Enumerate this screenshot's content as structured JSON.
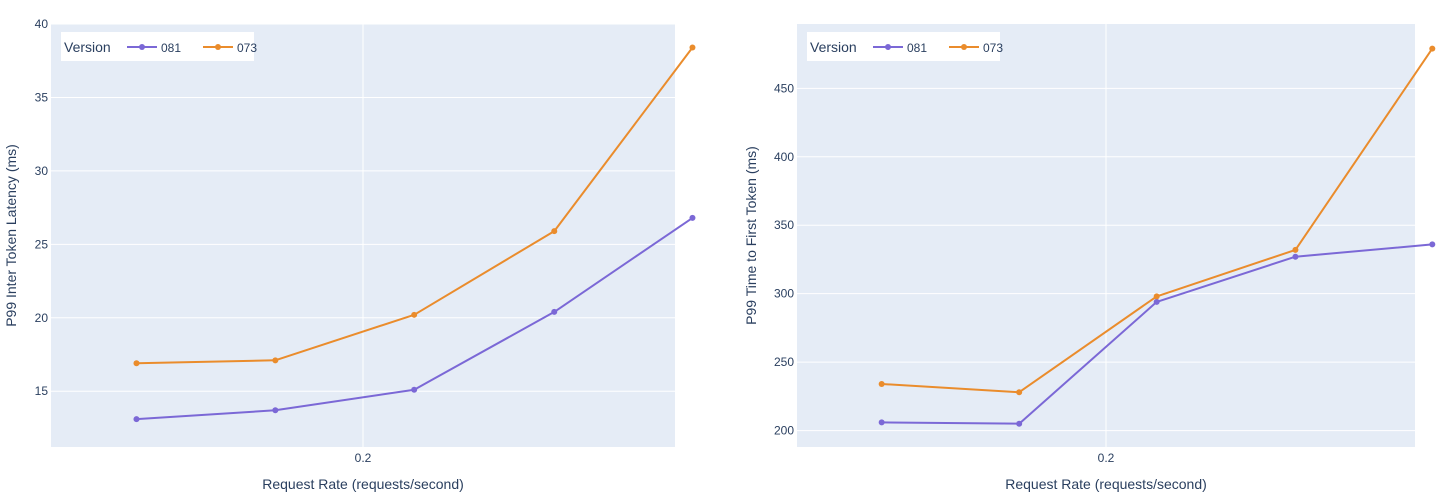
{
  "chart_data": [
    {
      "type": "line",
      "title": "",
      "xlabel": "Request Rate (requests/second)",
      "ylabel": "P99 Inter Token Latency (ms)",
      "x_ticks": [
        0.2
      ],
      "x_tick_labels": [
        "0.2"
      ],
      "y_ticks": [
        15,
        20,
        25,
        30,
        35,
        40
      ],
      "y_tick_labels": [
        "15",
        "20",
        "25",
        "30",
        "35",
        "40"
      ],
      "ylim": [
        11.2,
        40
      ],
      "xlim": [
        0.1,
        0.3
      ],
      "grid": true,
      "legend": {
        "title": "Version",
        "placement": "top-left",
        "orientation": "horizontal"
      },
      "x": [
        0.1274,
        0.1719,
        0.2164,
        0.2613,
        0.3056
      ],
      "series": [
        {
          "name": "081",
          "color": "#7b68d6",
          "values": [
            13.1,
            13.7,
            15.1,
            20.4,
            26.8
          ]
        },
        {
          "name": "073",
          "color": "#ea8c2c",
          "values": [
            16.9,
            17.1,
            20.2,
            25.9,
            38.4
          ]
        }
      ]
    },
    {
      "type": "line",
      "title": "",
      "xlabel": "Request Rate (requests/second)",
      "ylabel": "P99 Time to First Token (ms)",
      "x_ticks": [
        0.2
      ],
      "x_tick_labels": [
        "0.2"
      ],
      "y_ticks": [
        200,
        250,
        300,
        350,
        400,
        450
      ],
      "y_tick_labels": [
        "200",
        "250",
        "300",
        "350",
        "400",
        "450"
      ],
      "ylim": [
        188,
        497
      ],
      "xlim": [
        0.1,
        0.3
      ],
      "grid": true,
      "legend": {
        "title": "Version",
        "placement": "top-left",
        "orientation": "horizontal"
      },
      "x": [
        0.1274,
        0.1719,
        0.2164,
        0.2613,
        0.3056
      ],
      "series": [
        {
          "name": "081",
          "color": "#7b68d6",
          "values": [
            206,
            205,
            294,
            327,
            336
          ]
        },
        {
          "name": "073",
          "color": "#ea8c2c",
          "values": [
            234,
            228,
            298,
            332,
            479
          ]
        }
      ]
    }
  ]
}
